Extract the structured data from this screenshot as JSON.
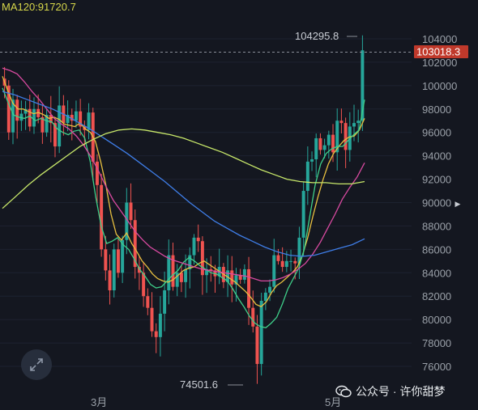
{
  "header": {
    "ma120_label": "MA120:91720.7"
  },
  "markers": {
    "high_label": "104295.8",
    "low_label": "74501.6",
    "current_price_label": "103018.3"
  },
  "watermark": {
    "icon": "wechat-icon",
    "text": "公众号 · 许你甜梦"
  },
  "controls": {
    "fullscreen_icon": "expand-icon",
    "nav_icon": "triangle-right-icon"
  },
  "colors": {
    "background": "#141720",
    "up": "#26a69a",
    "down": "#ef5350",
    "ma_yellow": "#e8c040",
    "ma_green": "#3fd08a",
    "ma_magenta": "#d84aa0",
    "ma_blue": "#3f7ee8",
    "ma_lime": "#c8e86a",
    "price_line_bg": "#c0392b"
  },
  "chart_data": {
    "type": "candlestick",
    "y_ticks": [
      76000,
      78000,
      80000,
      82000,
      84000,
      86000,
      88000,
      90000,
      92000,
      94000,
      96000,
      98000,
      100000,
      102000,
      104000
    ],
    "x_labels": [
      "3月",
      "5月"
    ],
    "ylim": [
      74000,
      105000
    ],
    "high": 104295.8,
    "low": 74501.6,
    "last": 103018.3,
    "closes": [
      100000,
      96000,
      98800,
      97000,
      97600,
      98000,
      96500,
      98000,
      97300,
      96000,
      97500,
      96800,
      94800,
      98300,
      96800,
      97500,
      97000,
      97800,
      96500,
      96200,
      97700,
      93500,
      91500,
      86000,
      84200,
      82500,
      86000,
      84000,
      86800,
      90000,
      88500,
      84500,
      84000,
      82000,
      81000,
      79000,
      78500,
      80500,
      82500,
      85500,
      82800,
      84000,
      83200,
      84300,
      85500,
      87000,
      86700,
      83800,
      84300,
      84200,
      83700,
      84500,
      83200,
      84200,
      83000,
      83800,
      83400,
      84300,
      81000,
      79400,
      76200,
      81600,
      82300,
      82800,
      85500,
      85000,
      84500,
      85000,
      85000,
      84800,
      87000,
      91000,
      93500,
      93700,
      95500,
      94500,
      94900,
      95800,
      94300,
      97000,
      96800,
      94500,
      96500,
      96800,
      97000,
      103018
    ],
    "ma_series": [
      {
        "color": "#e8c040",
        "points": [
          [
            100800,
            0
          ],
          [
            99600,
            1
          ],
          [
            98500,
            2
          ],
          [
            98000,
            3
          ],
          [
            98000,
            4
          ],
          [
            97800,
            5
          ],
          [
            97600,
            6
          ],
          [
            97700,
            7
          ],
          [
            97500,
            8
          ],
          [
            97200,
            9
          ],
          [
            97300,
            10
          ],
          [
            97100,
            11
          ],
          [
            96700,
            12
          ],
          [
            96600,
            13
          ],
          [
            96500,
            14
          ],
          [
            96800,
            15
          ],
          [
            96300,
            16
          ],
          [
            96000,
            17
          ],
          [
            95200,
            18
          ],
          [
            93500,
            19
          ],
          [
            91500,
            20
          ],
          [
            89000,
            21
          ],
          [
            87300,
            22
          ],
          [
            86800,
            23
          ],
          [
            87400,
            24
          ],
          [
            86500,
            25
          ],
          [
            85800,
            26
          ],
          [
            85000,
            27
          ],
          [
            84500,
            28
          ],
          [
            83900,
            29
          ],
          [
            83500,
            30
          ],
          [
            83300,
            31
          ],
          [
            83200,
            32
          ],
          [
            83400,
            33
          ],
          [
            83800,
            34
          ],
          [
            84200,
            35
          ],
          [
            84400,
            36
          ],
          [
            84500,
            37
          ],
          [
            84800,
            38
          ],
          [
            85000,
            39
          ],
          [
            84700,
            40
          ],
          [
            84400,
            41
          ],
          [
            84100,
            42
          ],
          [
            83800,
            43
          ],
          [
            83500,
            44
          ],
          [
            83200,
            45
          ],
          [
            82800,
            46
          ],
          [
            82400,
            47
          ],
          [
            81900,
            48
          ],
          [
            81300,
            49
          ],
          [
            81100,
            50
          ],
          [
            81500,
            51
          ],
          [
            82300,
            52
          ],
          [
            82900,
            53
          ],
          [
            83200,
            54
          ],
          [
            83600,
            55
          ],
          [
            84000,
            56
          ],
          [
            84500,
            57
          ],
          [
            85500,
            58
          ],
          [
            87000,
            59
          ],
          [
            88800,
            60
          ],
          [
            90500,
            61
          ],
          [
            92000,
            62
          ],
          [
            93300,
            63
          ],
          [
            94200,
            64
          ],
          [
            94800,
            65
          ],
          [
            95300,
            66
          ],
          [
            95600,
            67
          ],
          [
            95700,
            68
          ],
          [
            96200,
            69
          ],
          [
            97200,
            70
          ]
        ]
      },
      {
        "color": "#3fd08a",
        "points": [
          [
            99800,
            0
          ],
          [
            98600,
            1
          ],
          [
            97500,
            2
          ],
          [
            97300,
            3
          ],
          [
            97200,
            4
          ],
          [
            97400,
            5
          ],
          [
            97000,
            6
          ],
          [
            97200,
            7
          ],
          [
            97000,
            8
          ],
          [
            96900,
            9
          ],
          [
            96300,
            10
          ],
          [
            96000,
            11
          ],
          [
            95800,
            12
          ],
          [
            96100,
            13
          ],
          [
            96200,
            14
          ],
          [
            95500,
            15
          ],
          [
            93500,
            16
          ],
          [
            90500,
            17
          ],
          [
            88000,
            18
          ],
          [
            86500,
            19
          ],
          [
            86700,
            20
          ],
          [
            87000,
            21
          ],
          [
            86400,
            22
          ],
          [
            86000,
            23
          ],
          [
            85200,
            24
          ],
          [
            84300,
            25
          ],
          [
            83700,
            26
          ],
          [
            83000,
            27
          ],
          [
            82700,
            28
          ],
          [
            82800,
            29
          ],
          [
            83300,
            30
          ],
          [
            83800,
            31
          ],
          [
            84200,
            32
          ],
          [
            84900,
            33
          ],
          [
            85300,
            34
          ],
          [
            85000,
            35
          ],
          [
            84600,
            36
          ],
          [
            84300,
            37
          ],
          [
            84000,
            38
          ],
          [
            83900,
            39
          ],
          [
            83600,
            40
          ],
          [
            83300,
            41
          ],
          [
            82600,
            42
          ],
          [
            81800,
            43
          ],
          [
            81100,
            44
          ],
          [
            80300,
            45
          ],
          [
            79700,
            46
          ],
          [
            79400,
            47
          ],
          [
            79300,
            48
          ],
          [
            79700,
            49
          ],
          [
            80200,
            50
          ],
          [
            81300,
            51
          ],
          [
            82600,
            52
          ],
          [
            83500,
            53
          ],
          [
            84400,
            54
          ],
          [
            86000,
            55
          ],
          [
            88800,
            56
          ],
          [
            91500,
            57
          ],
          [
            93300,
            58
          ],
          [
            94200,
            59
          ],
          [
            94600,
            60
          ],
          [
            94800,
            61
          ],
          [
            94800,
            62
          ],
          [
            95300,
            63
          ],
          [
            95800,
            64
          ],
          [
            96200,
            65
          ],
          [
            98800,
            66
          ]
        ]
      },
      {
        "color": "#d84aa0",
        "points": [
          [
            101500,
            0
          ],
          [
            101300,
            1
          ],
          [
            101000,
            2
          ],
          [
            100300,
            3
          ],
          [
            99500,
            4
          ],
          [
            98800,
            5
          ],
          [
            98000,
            6
          ],
          [
            97200,
            7
          ],
          [
            96700,
            8
          ],
          [
            96300,
            9
          ],
          [
            95700,
            10
          ],
          [
            94900,
            11
          ],
          [
            93900,
            12
          ],
          [
            92700,
            13
          ],
          [
            91400,
            14
          ],
          [
            90200,
            15
          ],
          [
            89300,
            16
          ],
          [
            88400,
            17
          ],
          [
            87500,
            18
          ],
          [
            86800,
            19
          ],
          [
            86200,
            20
          ],
          [
            85800,
            21
          ],
          [
            85400,
            22
          ],
          [
            85100,
            23
          ],
          [
            84900,
            24
          ],
          [
            84700,
            25
          ],
          [
            84500,
            26
          ],
          [
            84300,
            27
          ],
          [
            84200,
            28
          ],
          [
            84100,
            29
          ],
          [
            84000,
            30
          ],
          [
            83900,
            31
          ],
          [
            83800,
            32
          ],
          [
            83700,
            33
          ],
          [
            83500,
            34
          ],
          [
            83300,
            35
          ],
          [
            83300,
            36
          ],
          [
            83400,
            37
          ],
          [
            83600,
            38
          ],
          [
            83900,
            39
          ],
          [
            84300,
            40
          ],
          [
            84800,
            41
          ],
          [
            85600,
            42
          ],
          [
            86600,
            43
          ],
          [
            87800,
            44
          ],
          [
            89000,
            45
          ],
          [
            90300,
            46
          ],
          [
            91300,
            47
          ],
          [
            92200,
            48
          ],
          [
            93400,
            49
          ]
        ]
      },
      {
        "color": "#3f7ee8",
        "points": [
          [
            99500,
            0
          ],
          [
            99200,
            1
          ],
          [
            98800,
            2
          ],
          [
            98400,
            3
          ],
          [
            98000,
            4
          ],
          [
            97500,
            5
          ],
          [
            96900,
            6
          ],
          [
            96300,
            7
          ],
          [
            95600,
            8
          ],
          [
            94900,
            9
          ],
          [
            94200,
            10
          ],
          [
            93400,
            11
          ],
          [
            92600,
            12
          ],
          [
            91800,
            13
          ],
          [
            90900,
            14
          ],
          [
            90000,
            15
          ],
          [
            89200,
            16
          ],
          [
            88400,
            17
          ],
          [
            87800,
            18
          ],
          [
            87200,
            19
          ],
          [
            86700,
            20
          ],
          [
            86200,
            21
          ],
          [
            85800,
            22
          ],
          [
            85500,
            23
          ],
          [
            85400,
            24
          ],
          [
            85500,
            25
          ],
          [
            85800,
            26
          ],
          [
            86100,
            27
          ],
          [
            86400,
            28
          ],
          [
            86900,
            29
          ]
        ]
      },
      {
        "color": "#c8e86a",
        "points": [
          [
            89500,
            0
          ],
          [
            90500,
            1
          ],
          [
            91500,
            2
          ],
          [
            92400,
            3
          ],
          [
            93200,
            4
          ],
          [
            94000,
            5
          ],
          [
            94800,
            6
          ],
          [
            95400,
            7
          ],
          [
            95900,
            8
          ],
          [
            96200,
            9
          ],
          [
            96300,
            10
          ],
          [
            96200,
            11
          ],
          [
            96000,
            12
          ],
          [
            95800,
            13
          ],
          [
            95500,
            14
          ],
          [
            95100,
            15
          ],
          [
            94700,
            16
          ],
          [
            94300,
            17
          ],
          [
            93800,
            18
          ],
          [
            93300,
            19
          ],
          [
            92800,
            20
          ],
          [
            92400,
            21
          ],
          [
            92000,
            22
          ],
          [
            91800,
            23
          ],
          [
            91700,
            24
          ],
          [
            91700,
            25
          ],
          [
            91600,
            26
          ],
          [
            91600,
            27
          ],
          [
            91800,
            28
          ]
        ]
      }
    ]
  }
}
